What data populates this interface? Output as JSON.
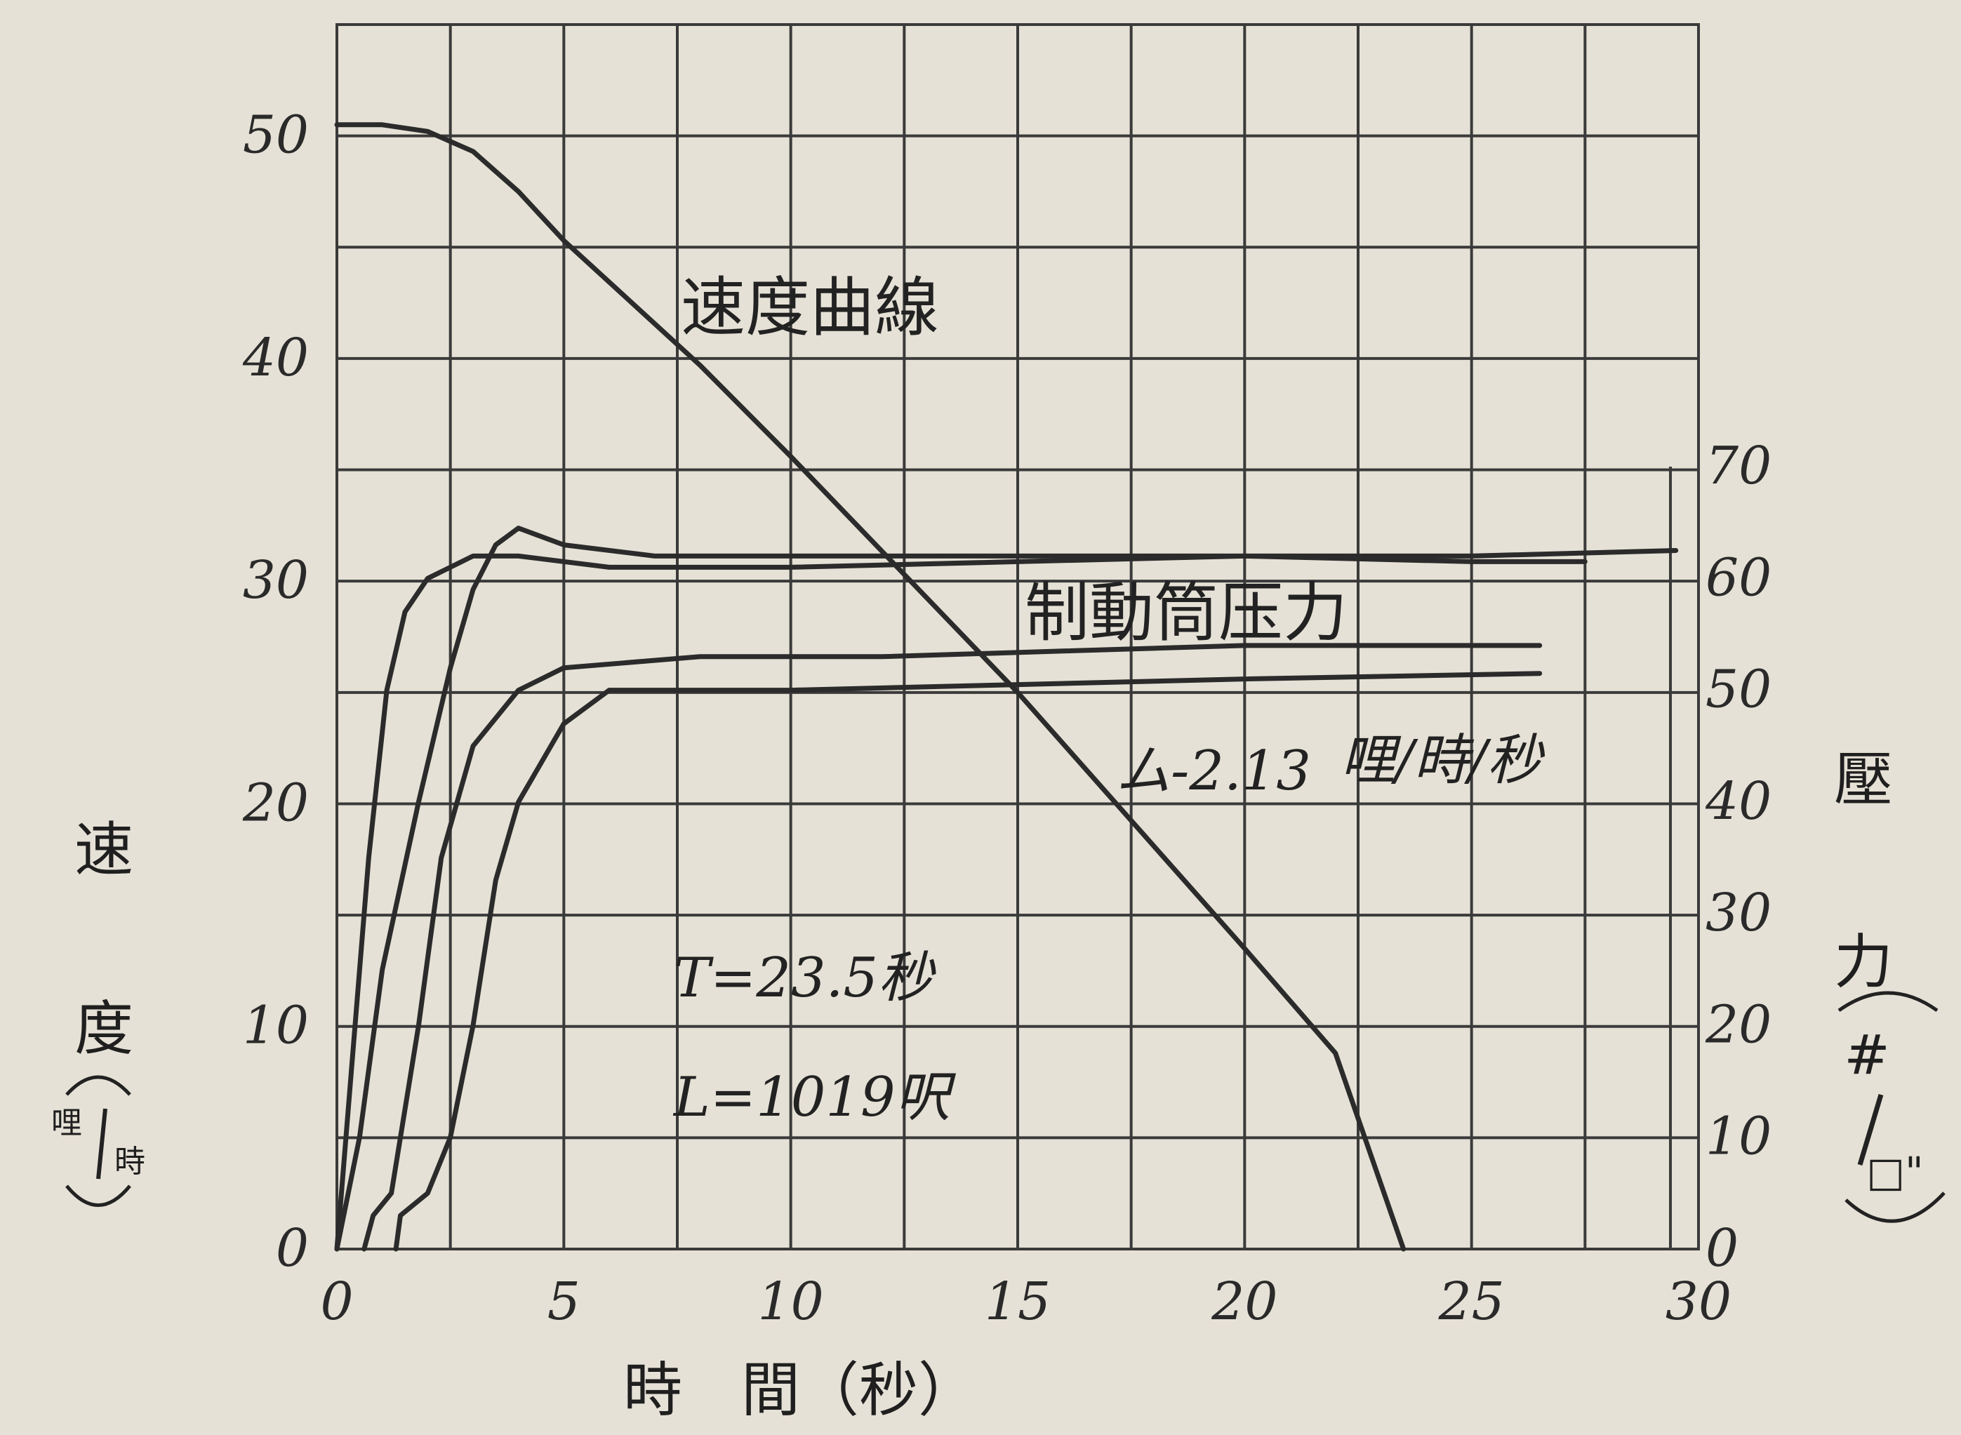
{
  "chart_data": {
    "type": "line",
    "x_axis": {
      "label": "時　間（秒）",
      "ticks": [
        "0",
        "5",
        "10",
        "15",
        "20",
        "25",
        "30"
      ],
      "range": [
        0,
        30
      ]
    },
    "y_axis_left": {
      "label_chars": [
        "速",
        "度"
      ],
      "unit_num": "哩",
      "unit_den": "時",
      "ticks": [
        "0",
        "10",
        "20",
        "30",
        "40",
        "50"
      ],
      "range": [
        0,
        55
      ]
    },
    "y_axis_right": {
      "label_chars": [
        "壓",
        "力"
      ],
      "unit_num": "#",
      "unit_den": "□\"",
      "ticks": [
        "0",
        "10",
        "20",
        "30",
        "40",
        "50",
        "60",
        "70"
      ],
      "range": [
        0,
        70
      ]
    },
    "grid": true,
    "curve_labels": {
      "speed": "速度曲線",
      "pressure": "制動筒压力"
    },
    "annotations": {
      "decel_value": "ム-2.13",
      "decel_unit": "哩/時/秒",
      "time": "T=23.5秒",
      "distance": "L=1019呎"
    },
    "series": [
      {
        "axis": "left",
        "points": [
          [
            0,
            50.5
          ],
          [
            1,
            50.5
          ],
          [
            2,
            50.2
          ],
          [
            3,
            49.3
          ],
          [
            4,
            47.5
          ],
          [
            5,
            45.3
          ],
          [
            8,
            39.7
          ],
          [
            10,
            35.6
          ],
          [
            15,
            25.0
          ],
          [
            20,
            13.5
          ],
          [
            22,
            8.8
          ],
          [
            23.5,
            0
          ]
        ]
      },
      {
        "axis": "right",
        "points": [
          [
            0,
            0
          ],
          [
            0.3,
            15
          ],
          [
            0.7,
            35
          ],
          [
            1.1,
            50
          ],
          [
            1.5,
            57
          ],
          [
            2,
            60
          ],
          [
            3,
            62
          ],
          [
            4,
            62
          ],
          [
            6,
            61
          ],
          [
            10,
            61
          ],
          [
            15,
            61.5
          ],
          [
            20,
            62
          ],
          [
            25,
            62
          ],
          [
            29.5,
            62.5
          ]
        ]
      },
      {
        "axis": "right",
        "points": [
          [
            0,
            0
          ],
          [
            0.5,
            10
          ],
          [
            1,
            25
          ],
          [
            1.8,
            40
          ],
          [
            2.5,
            52
          ],
          [
            3,
            59
          ],
          [
            3.5,
            63
          ],
          [
            4,
            64.5
          ],
          [
            5,
            63
          ],
          [
            7,
            62
          ],
          [
            10,
            62
          ],
          [
            15,
            62
          ],
          [
            20,
            62
          ],
          [
            25,
            61.5
          ],
          [
            27.5,
            61.5
          ]
        ]
      },
      {
        "axis": "right",
        "points": [
          [
            0.6,
            0
          ],
          [
            0.8,
            3
          ],
          [
            1.2,
            5
          ],
          [
            1.8,
            20
          ],
          [
            2.3,
            35
          ],
          [
            3,
            45
          ],
          [
            4,
            50
          ],
          [
            5,
            52
          ],
          [
            8,
            53
          ],
          [
            12,
            53
          ],
          [
            16,
            53.5
          ],
          [
            20,
            54
          ],
          [
            26.5,
            54
          ]
        ]
      },
      {
        "axis": "right",
        "points": [
          [
            1.3,
            0
          ],
          [
            1.4,
            3
          ],
          [
            2,
            5
          ],
          [
            2.5,
            10
          ],
          [
            3,
            20
          ],
          [
            3.5,
            33
          ],
          [
            4,
            40
          ],
          [
            5,
            47
          ],
          [
            6,
            50
          ],
          [
            10,
            50
          ],
          [
            15,
            50.5
          ],
          [
            20,
            51
          ],
          [
            26.5,
            51.5
          ]
        ]
      }
    ]
  }
}
